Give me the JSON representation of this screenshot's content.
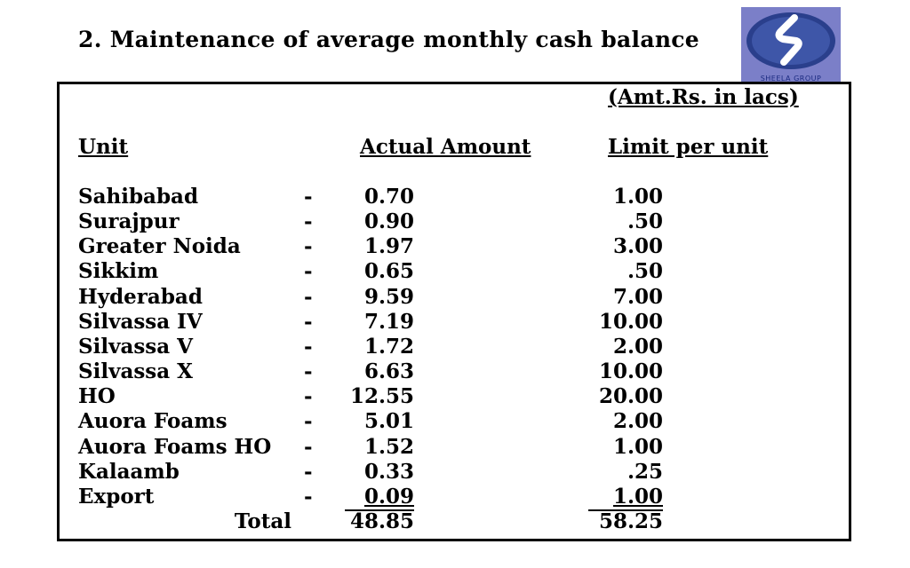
{
  "slide": {
    "title": "2.  Maintenance of average monthly cash balance",
    "unit_note": "(Amt.Rs. in lacs)",
    "logo_text": "SHEELA GROUP"
  },
  "table": {
    "headers": {
      "unit": "Unit",
      "actual": "Actual Amount",
      "limit": "Limit per unit"
    },
    "separator": "-",
    "rows": [
      {
        "unit": "Sahibabad",
        "actual": "0.70",
        "limit": "1.00"
      },
      {
        "unit": "Surajpur",
        "actual": "0.90",
        "limit": ".50"
      },
      {
        "unit": "Greater Noida",
        "actual": "1.97",
        "limit": "3.00"
      },
      {
        "unit": "Sikkim",
        "actual": "0.65",
        "limit": ".50"
      },
      {
        "unit": "Hyderabad",
        "actual": "9.59",
        "limit": "7.00"
      },
      {
        "unit": "Silvassa IV",
        "actual": "7.19",
        "limit": "10.00"
      },
      {
        "unit": "Silvassa V",
        "actual": "1.72",
        "limit": "2.00"
      },
      {
        "unit": "Silvassa X",
        "actual": "6.63",
        "limit": "10.00"
      },
      {
        "unit": "HO",
        "actual": "12.55",
        "limit": "20.00"
      },
      {
        "unit": "Auora Foams",
        "actual": "5.01",
        "limit": "2.00"
      },
      {
        "unit": "Auora Foams HO",
        "actual": "1.52",
        "limit": "1.00"
      },
      {
        "unit": "Kalaamb",
        "actual": "0.33",
        "limit": ".25"
      },
      {
        "unit": "Export",
        "actual": "0.09",
        "limit": "1.00"
      }
    ],
    "total": {
      "label": "Total",
      "actual": "48.85",
      "limit": "58.25"
    }
  }
}
